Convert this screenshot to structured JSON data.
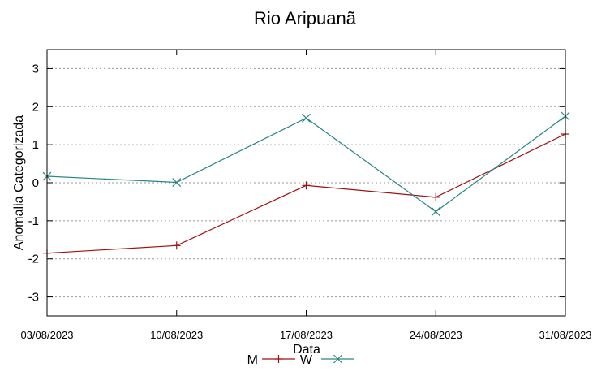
{
  "chart_data": {
    "type": "line",
    "title": "Rio Aripuanã",
    "xlabel": "Data",
    "ylabel": "Anomalia Categorizada",
    "categories": [
      "03/08/2023",
      "10/08/2023",
      "17/08/2023",
      "24/08/2023",
      "31/08/2023"
    ],
    "yticks": [
      3,
      2,
      1,
      0,
      -1,
      -2,
      -3
    ],
    "ylim": [
      -3.5,
      3.5
    ],
    "grid": "horizontal dotted",
    "legend_position": "bottom-center",
    "series": [
      {
        "name": "M",
        "values": [
          -1.85,
          -1.65,
          -0.07,
          -0.38,
          1.28
        ],
        "color": "#a01010",
        "marker": "plus"
      },
      {
        "name": "W",
        "values": [
          0.17,
          0.01,
          1.7,
          -0.76,
          1.75
        ],
        "color": "#2a8585",
        "marker": "cross"
      }
    ]
  }
}
